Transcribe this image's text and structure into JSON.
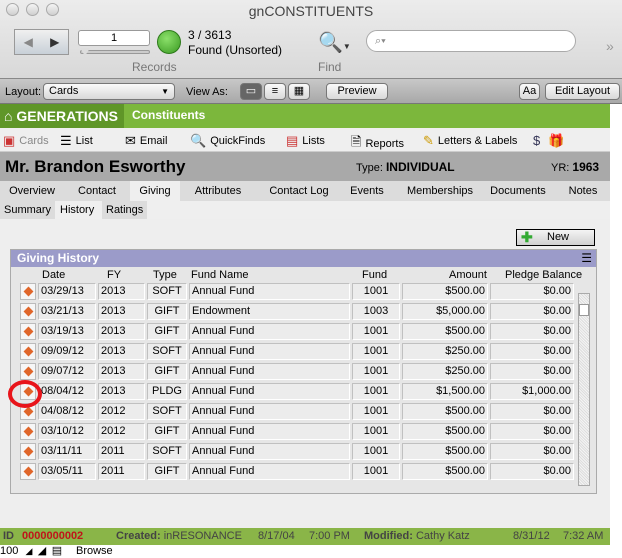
{
  "window": {
    "title": "gnCONSTITUENTS"
  },
  "toolbar": {
    "record_number": "1",
    "found_count": "3 / 3613",
    "found_status": "Found (Unsorted)",
    "records_label": "Records",
    "find_label": "Find",
    "search_placeholder": ""
  },
  "layoutbar": {
    "layout_label": "Layout:",
    "layout_value": "Cards",
    "view_as_label": "View As:",
    "preview": "Preview",
    "text_format": "Aa",
    "edit_layout": "Edit Layout"
  },
  "app": {
    "brand": "GENERATIONS",
    "breadcrumb": "Constituents"
  },
  "nav": [
    {
      "label": "Cards",
      "icon": "cards-icon"
    },
    {
      "label": "List",
      "icon": "list-icon"
    },
    {
      "label": "Email",
      "icon": "email-icon"
    },
    {
      "label": "QuickFinds",
      "icon": "magnifier-icon"
    },
    {
      "label": "Lists",
      "icon": "lists-icon"
    },
    {
      "label": "Reports",
      "icon": "report-icon"
    },
    {
      "label": "Letters & Labels",
      "icon": "letter-icon"
    }
  ],
  "record": {
    "name": "Mr. Brandon Esworthy",
    "type_label": "Type:",
    "type_value": "INDIVIDUAL",
    "yr_label": "YR:",
    "yr_value": "1963"
  },
  "tabs": [
    "Overview",
    "Contact",
    "Giving",
    "Attributes",
    "Contact Log",
    "Events",
    "Memberships",
    "Documents",
    "Notes"
  ],
  "active_tab": "Giving",
  "subtabs": [
    "Summary",
    "History",
    "Ratings"
  ],
  "active_subtab": "History",
  "giving": {
    "new_button": "New",
    "title": "Giving History",
    "columns": [
      "Date",
      "FY",
      "Type",
      "Fund Name",
      "Fund",
      "Amount",
      "Pledge Balance"
    ],
    "rows": [
      [
        "03/29/13",
        "2013",
        "SOFT",
        "Annual Fund",
        "1001",
        "$500.00",
        "$0.00"
      ],
      [
        "03/21/13",
        "2013",
        "GIFT",
        "Endowment",
        "1003",
        "$5,000.00",
        "$0.00"
      ],
      [
        "03/19/13",
        "2013",
        "GIFT",
        "Annual Fund",
        "1001",
        "$500.00",
        "$0.00"
      ],
      [
        "09/09/12",
        "2013",
        "SOFT",
        "Annual Fund",
        "1001",
        "$250.00",
        "$0.00"
      ],
      [
        "09/07/12",
        "2013",
        "GIFT",
        "Annual Fund",
        "1001",
        "$250.00",
        "$0.00"
      ],
      [
        "08/04/12",
        "2013",
        "PLDG",
        "Annual Fund",
        "1001",
        "$1,500.00",
        "$1,000.00"
      ],
      [
        "04/08/12",
        "2012",
        "SOFT",
        "Annual Fund",
        "1001",
        "$500.00",
        "$0.00"
      ],
      [
        "03/10/12",
        "2012",
        "GIFT",
        "Annual Fund",
        "1001",
        "$500.00",
        "$0.00"
      ],
      [
        "03/11/11",
        "2011",
        "SOFT",
        "Annual Fund",
        "1001",
        "$500.00",
        "$0.00"
      ],
      [
        "03/05/11",
        "2011",
        "GIFT",
        "Annual Fund",
        "1001",
        "$500.00",
        "$0.00"
      ]
    ]
  },
  "footer": {
    "id_label": "ID",
    "id_value": "0000000002",
    "created_label": "Created:",
    "created_by": "inRESONANCE",
    "created_date": "8/17/04",
    "created_time": "7:00 PM",
    "modified_label": "Modified:",
    "modified_by": "Cathy Katz",
    "modified_date": "8/31/12",
    "modified_time": "7:32 AM"
  },
  "statusbar": {
    "zoom": "100",
    "mode": "Browse"
  },
  "colors": {
    "green": "#7cb73c",
    "panel_header": "#9b9bc9",
    "highlight_circle": "#e8141a",
    "id_red": "#c0141a"
  }
}
